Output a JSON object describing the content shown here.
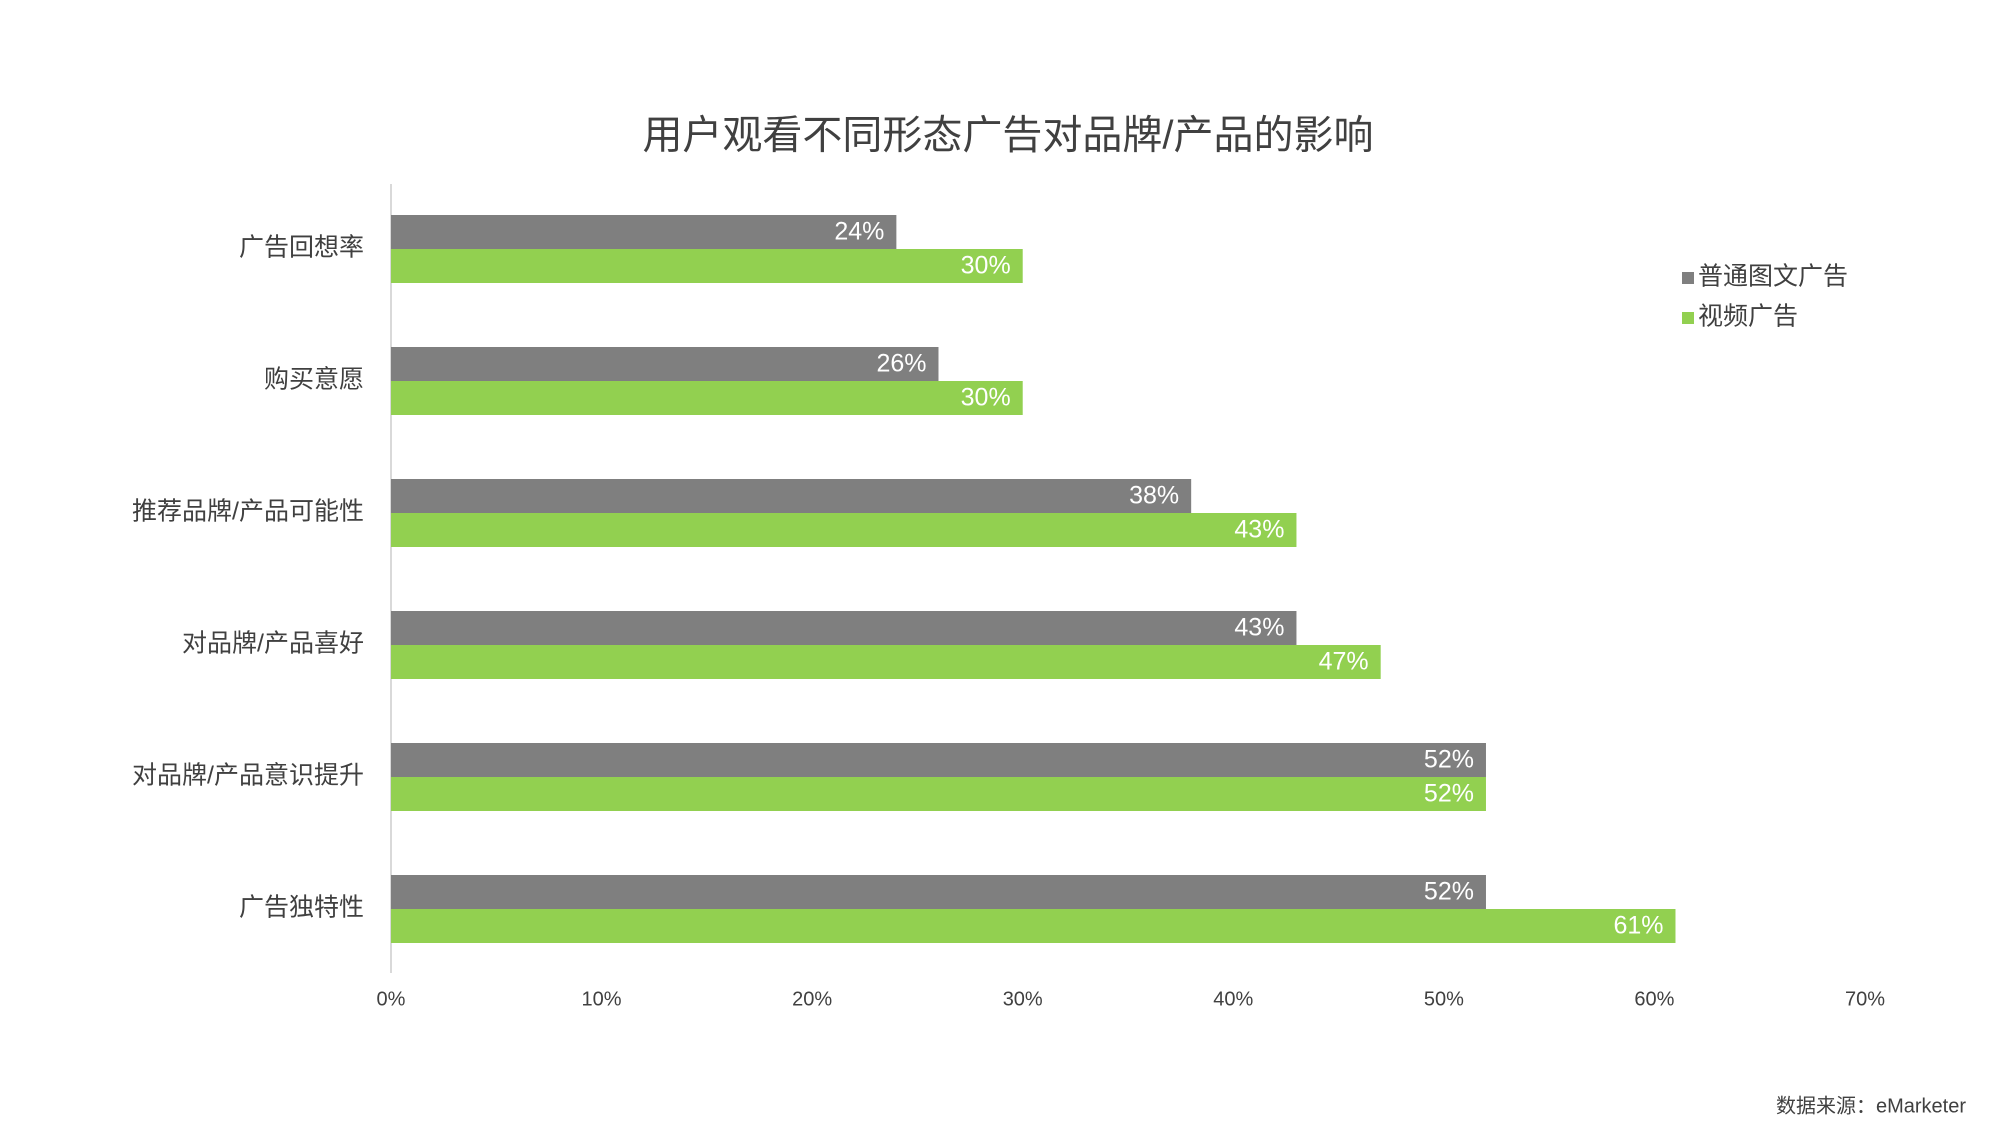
{
  "chart_data": {
    "type": "bar",
    "orientation": "horizontal",
    "title": "用户观看不同形态广告对品牌/产品的影响",
    "categories": [
      "广告回想率",
      "购买意愿",
      "推荐品牌/产品可能性",
      "对品牌/产品喜好",
      "对品牌/产品意识提升",
      "广告独特性"
    ],
    "series": [
      {
        "name": "普通图文广告",
        "color": "#7f7f7f",
        "values": [
          24,
          26,
          38,
          43,
          52,
          52
        ],
        "value_labels": [
          "24%",
          "26%",
          "38%",
          "43%",
          "52%",
          "52%"
        ]
      },
      {
        "name": "视频广告",
        "color": "#92d050",
        "values": [
          30,
          30,
          43,
          47,
          52,
          61
        ],
        "value_labels": [
          "30%",
          "30%",
          "43%",
          "47%",
          "52%",
          "61%"
        ]
      }
    ],
    "xlim": [
      0,
      70
    ],
    "xticks": [
      {
        "value": 0,
        "label": "0%"
      },
      {
        "value": 10,
        "label": "10%"
      },
      {
        "value": 20,
        "label": "20%"
      },
      {
        "value": 30,
        "label": "30%"
      },
      {
        "value": 40,
        "label": "40%"
      },
      {
        "value": 50,
        "label": "50%"
      },
      {
        "value": 60,
        "label": "60%"
      },
      {
        "value": 70,
        "label": "70%"
      }
    ],
    "grid": false,
    "legend": "right",
    "source": "数据来源：eMarketer"
  }
}
